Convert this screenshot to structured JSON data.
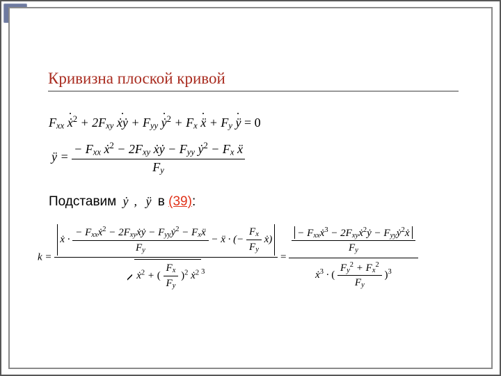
{
  "theme": {
    "outer_border_color": "#575757",
    "inner_border_color": "#8a8a8a",
    "title_color": "#a92c20",
    "rule_color": "#999999",
    "link_color": "#e03118",
    "bg_color": "#ffffff",
    "text_color": "#000000",
    "back_button_color": "#6e7aa0"
  },
  "title": "Кривизна плоской кривой",
  "eq1": {
    "t1": "F",
    "s1": "xx",
    "v1": "ẋ",
    "p1": "2",
    "t2": " + 2F",
    "s2": "xy",
    "v2": "ẋẏ",
    "t3": " + F",
    "s3": "yy",
    "v3": "ẏ",
    "p3": "2",
    "t4": " + F",
    "s4": "x",
    "v4": "ẍ",
    "t5": " + F",
    "s5": "y",
    "v5": "ÿ",
    "eqz": " = 0"
  },
  "eq2": {
    "lhs": "ÿ =",
    "num": {
      "t1": "− F",
      "s1": "xx",
      "v1": "ẋ",
      "p1": "2",
      "t2": " − 2F",
      "s2": "xy",
      "v2": "ẋẏ",
      "t3": " − F",
      "s3": "yy",
      "v3": "ẏ",
      "p3": "2",
      "t4": " − F",
      "s4": "x",
      "v4": "ẍ"
    },
    "den": {
      "t": "F",
      "s": "y"
    }
  },
  "subst": {
    "before": "Подставим ",
    "sym1": "ẏ",
    "comma": ", ",
    "sym2": "ÿ",
    "mid": " в ",
    "ref": "(39)",
    "after": ":"
  },
  "eq3": {
    "k_eq": "k =",
    "eq_sign_1": " = ",
    "left": {
      "num": {
        "xdot": "ẋ ·",
        "inner_num": {
          "t1": "− F",
          "s1": "xx",
          "v1": "ẋ",
          "p1": "2",
          "t2": " − 2F",
          "s2": "xy",
          "v2": "ẋẏ",
          "t3": " − F",
          "s3": "yy",
          "v3": "ẏ",
          "p3": "2",
          "t4": " − F",
          "s4": "x",
          "v4": "ẍ"
        },
        "inner_den": {
          "t": "F",
          "s": "y"
        },
        "minus_x2": " − ẍ · (−",
        "fxfy_num": {
          "t": "F",
          "s": "x"
        },
        "fxfy_den": {
          "t": "F",
          "s": "y"
        },
        "xdot_close": " ẋ)"
      },
      "den": {
        "x2": "ẋ",
        "p_x2": "2",
        "plus": " + ",
        "fxfy_num": {
          "t": "F",
          "s": "x"
        },
        "fxfy_den": {
          "t": "F",
          "s": "y"
        },
        "sq": "2",
        "outer_p": "3",
        "x2b": "ẋ",
        "p_x2b": "2"
      }
    },
    "right": {
      "num_abs": {
        "t1": "− F",
        "s1": "xx",
        "v1": "ẋ",
        "p1": "3",
        "t2": " − 2F",
        "s2": "xy",
        "v2": "ẋ",
        "p2": "2",
        "v2b": "ẏ",
        "t3": " − F",
        "s3": "yy",
        "v3": "ẏ",
        "p3": "2",
        "v3b": "ẋ"
      },
      "num_den": {
        "t": "F",
        "s": "y"
      },
      "den": {
        "x2": "ẋ",
        "p": "3",
        "mult": " · ",
        "inner_num": {
          "t1": "F",
          "s1": "y",
          "p1": "2",
          "plus": " + ",
          "t2": "F",
          "s2": "x",
          "p2": "2"
        },
        "inner_den": {
          "t": "F",
          "s": "y"
        },
        "outer_p": "3"
      }
    }
  }
}
